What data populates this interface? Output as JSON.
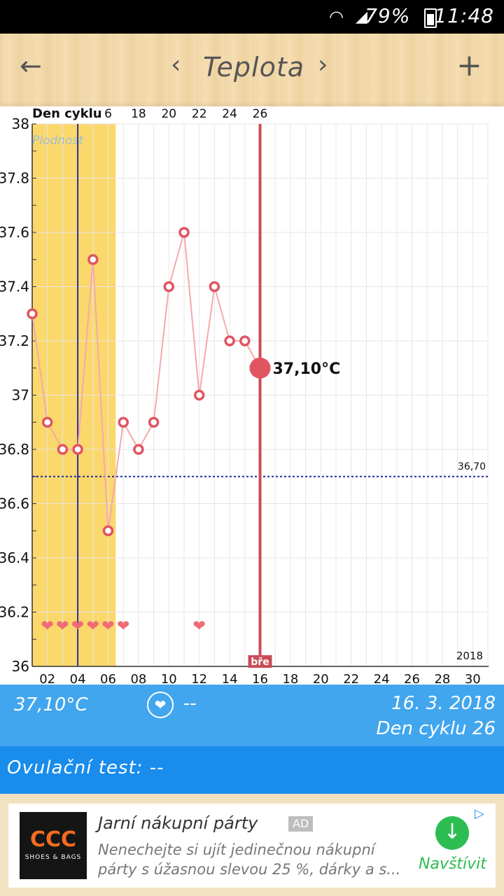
{
  "status_bar": {
    "battery": "79%",
    "time": "11:48"
  },
  "app_bar": {
    "back_icon": "arrow-left-icon",
    "prev_icon": "chevron-left-icon",
    "title": "Teplota",
    "next_icon": "chevron-right-icon",
    "add_icon": "plus-icon"
  },
  "chart_data": {
    "type": "line",
    "top_label": "Den cyklu",
    "top_ticks": [
      "6",
      "18",
      "20",
      "22",
      "24",
      "26"
    ],
    "fertile_label": "Plodnost",
    "x_ticks": [
      "02",
      "04",
      "06",
      "08",
      "10",
      "12",
      "14",
      "16",
      "18",
      "20",
      "22",
      "24",
      "26",
      "28",
      "30"
    ],
    "y_ticks": [
      "36",
      "36.2",
      "36.4",
      "36.6",
      "36.8",
      "37",
      "37.2",
      "37.4",
      "37.6",
      "37.8",
      "38"
    ],
    "ylim": [
      36,
      38
    ],
    "xlim": [
      1,
      31
    ],
    "year_label": "2018",
    "series": [
      {
        "x": [
          1,
          2,
          3,
          4,
          5,
          6,
          7,
          8,
          9,
          10,
          11,
          12,
          13,
          14,
          15,
          16
        ],
        "y": [
          37.3,
          36.9,
          36.8,
          36.8,
          37.5,
          36.5,
          36.9,
          36.8,
          36.9,
          37.4,
          37.6,
          37.0,
          37.4,
          37.2,
          37.2,
          37.1
        ]
      }
    ],
    "current": {
      "x": 16,
      "y": 37.1,
      "label": "37,10°C"
    },
    "baseline": {
      "y": 36.7,
      "label": "36,70"
    },
    "fertile_window": [
      1,
      6
    ],
    "ovulation_day": 4,
    "hearts": [
      2,
      3,
      4,
      5,
      6,
      7,
      12
    ],
    "marker_label": "bře",
    "colors": {
      "fertile": "#fbd86b",
      "line": "#f5a9ad",
      "point": "#e05561",
      "current_line": "#c94c56",
      "ovulation": "#2c2f9c",
      "baseline": "#1f2a9a",
      "grid": "#e6e6e6"
    }
  },
  "info": {
    "temp": "37,10°C",
    "heart_value": "--",
    "date": "16. 3. 2018",
    "cycle": "Den cyklu 26"
  },
  "test": {
    "label": "Ovulační test: --"
  },
  "ad": {
    "logo": "CCC",
    "logo_sub": "SHOES & BAGS",
    "title": "Jarní nákupní párty",
    "badge": "AD",
    "desc": "Nenechejte si ujít jedinečnou nákupní párty s úžasnou slevou 25 %, dárky a s...",
    "cta": "Navštívit"
  }
}
